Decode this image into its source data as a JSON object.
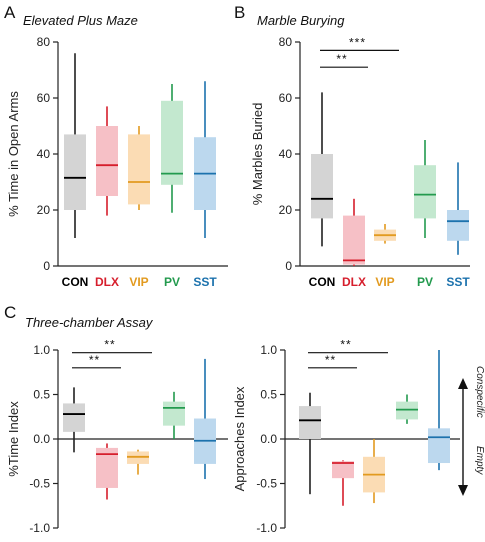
{
  "colors": {
    "CON": {
      "box": "#d4d4d4",
      "median": "#000000",
      "whisker": "#222222"
    },
    "DLX": {
      "box": "#f6c0c6",
      "median": "#d61e2c",
      "whisker": "#d61e2c"
    },
    "VIP": {
      "box": "#fbdcb4",
      "median": "#e29a1f",
      "whisker": "#e29a1f"
    },
    "PV": {
      "box": "#c3e8cf",
      "median": "#239a4e",
      "whisker": "#239a4e"
    },
    "SST": {
      "box": "#bcd8ee",
      "median": "#1c72ad",
      "whisker": "#1c72ad"
    }
  },
  "panels": {
    "A": {
      "letter": "A",
      "title": "Elevated Plus Maze"
    },
    "B": {
      "letter": "B",
      "title": "Marble Burying"
    },
    "C": {
      "letter": "C",
      "title": "Three-chamber Assay"
    }
  },
  "annotations": {
    "conspecific": "Conspecific",
    "empty": "Empty"
  },
  "chart_data": [
    {
      "id": "A",
      "type": "box",
      "title": "Elevated Plus Maze",
      "ylabel": "% Time in Open Arms",
      "ylim": [
        0,
        80
      ],
      "yticks": [
        0,
        20,
        40,
        60,
        80
      ],
      "ytick_labels": [
        "0",
        "20",
        "40",
        "60",
        "80"
      ],
      "categories": [
        "CON",
        "DLX",
        "VIP",
        "PV",
        "SST"
      ],
      "boxes": [
        {
          "name": "CON",
          "min": 10,
          "q1": 20,
          "median": 31.5,
          "q3": 47,
          "max": 76
        },
        {
          "name": "DLX",
          "min": 18,
          "q1": 25,
          "median": 36,
          "q3": 50,
          "max": 57
        },
        {
          "name": "VIP",
          "min": 20,
          "q1": 22,
          "median": 30,
          "q3": 47,
          "max": 50
        },
        {
          "name": "PV",
          "min": 19,
          "q1": 29,
          "median": 33,
          "q3": 59,
          "max": 65
        },
        {
          "name": "SST",
          "min": 10,
          "q1": 20,
          "median": 33,
          "q3": 46,
          "max": 66
        }
      ],
      "significance": []
    },
    {
      "id": "B",
      "type": "box",
      "title": "Marble Burying",
      "ylabel": "% Marbles Buried",
      "ylim": [
        0,
        80
      ],
      "yticks": [
        0,
        20,
        40,
        60,
        80
      ],
      "ytick_labels": [
        "0",
        "20",
        "40",
        "60",
        "80"
      ],
      "categories": [
        "CON",
        "DLX",
        "VIP",
        "PV",
        "SST"
      ],
      "boxes": [
        {
          "name": "CON",
          "min": 7,
          "q1": 17,
          "median": 24,
          "q3": 40,
          "max": 62
        },
        {
          "name": "DLX",
          "min": 0,
          "q1": 0.5,
          "median": 2,
          "q3": 18,
          "max": 24
        },
        {
          "name": "VIP",
          "min": 8,
          "q1": 9,
          "median": 11,
          "q3": 13,
          "max": 15
        },
        {
          "name": "PV",
          "min": 10,
          "q1": 17,
          "median": 25.5,
          "q3": 36,
          "max": 45
        },
        {
          "name": "SST",
          "min": 4,
          "q1": 9,
          "median": 16,
          "q3": 20,
          "max": 37
        }
      ],
      "significance": [
        {
          "from": "CON",
          "to": "DLX",
          "label": "**",
          "y": 71
        },
        {
          "from": "CON",
          "to": "VIP",
          "label": "***",
          "y": 77
        }
      ]
    },
    {
      "id": "C-left",
      "type": "box",
      "title": "Three-chamber Assay",
      "ylabel": "%Time Index",
      "ylim": [
        -1.0,
        1.0
      ],
      "yticks": [
        -1.0,
        -0.5,
        0.0,
        0.5,
        1.0
      ],
      "ytick_labels": [
        "-1.0",
        "-0.5",
        "0.0",
        "0.5",
        "1.0"
      ],
      "categories": [
        "CON",
        "DLX",
        "VIP",
        "PV",
        "SST"
      ],
      "boxes": [
        {
          "name": "CON",
          "min": -0.15,
          "q1": 0.08,
          "median": 0.28,
          "q3": 0.4,
          "max": 0.58
        },
        {
          "name": "DLX",
          "min": -0.68,
          "q1": -0.55,
          "median": -0.17,
          "q3": -0.1,
          "max": -0.05
        },
        {
          "name": "VIP",
          "min": -0.4,
          "q1": -0.28,
          "median": -0.2,
          "q3": -0.14,
          "max": -0.12
        },
        {
          "name": "PV",
          "min": 0.0,
          "q1": 0.15,
          "median": 0.35,
          "q3": 0.42,
          "max": 0.53
        },
        {
          "name": "SST",
          "min": -0.45,
          "q1": -0.28,
          "median": -0.02,
          "q3": 0.23,
          "max": 0.9
        }
      ],
      "significance": [
        {
          "from": "CON",
          "to": "DLX",
          "label": "**",
          "y": 0.8
        },
        {
          "from": "CON",
          "to": "VIP",
          "label": "**",
          "y": 0.97
        }
      ]
    },
    {
      "id": "C-right",
      "type": "box",
      "title": "",
      "ylabel": "Approaches Index",
      "ylim": [
        -1.0,
        1.0
      ],
      "yticks": [
        -1.0,
        -0.5,
        0.0,
        0.5,
        1.0
      ],
      "ytick_labels": [
        "-1.0",
        "-0.5",
        "0.0",
        "0.5",
        "1.0"
      ],
      "categories": [
        "CON",
        "DLX",
        "VIP",
        "PV",
        "SST"
      ],
      "boxes": [
        {
          "name": "CON",
          "min": -0.62,
          "q1": 0.0,
          "median": 0.21,
          "q3": 0.37,
          "max": 0.52
        },
        {
          "name": "DLX",
          "min": -0.75,
          "q1": -0.44,
          "median": -0.27,
          "q3": -0.25,
          "max": -0.24
        },
        {
          "name": "VIP",
          "min": -0.72,
          "q1": -0.6,
          "median": -0.4,
          "q3": -0.2,
          "max": 0.0
        },
        {
          "name": "PV",
          "min": 0.17,
          "q1": 0.22,
          "median": 0.33,
          "q3": 0.42,
          "max": 0.5
        },
        {
          "name": "SST",
          "min": -0.35,
          "q1": -0.27,
          "median": 0.02,
          "q3": 0.12,
          "max": 1.0
        }
      ],
      "significance": [
        {
          "from": "CON",
          "to": "DLX",
          "label": "**",
          "y": 0.8
        },
        {
          "from": "CON",
          "to": "VIP",
          "label": "**",
          "y": 0.97
        }
      ]
    }
  ]
}
